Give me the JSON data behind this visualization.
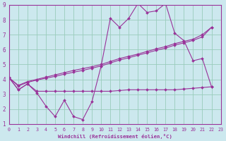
{
  "bg_color": "#cce8ee",
  "grid_color": "#99ccbb",
  "line_color": "#993399",
  "xlabel": "Windchill (Refroidissement éolien,°C)",
  "xlim": [
    0,
    23
  ],
  "ylim": [
    1,
    9
  ],
  "xticks": [
    0,
    1,
    2,
    3,
    4,
    5,
    6,
    7,
    8,
    9,
    10,
    11,
    12,
    13,
    14,
    15,
    16,
    17,
    18,
    19,
    20,
    21,
    22,
    23
  ],
  "yticks": [
    1,
    2,
    3,
    4,
    5,
    6,
    7,
    8,
    9
  ],
  "series1_x": [
    0,
    1,
    2,
    3,
    4,
    5,
    6,
    7,
    8,
    9,
    10,
    11,
    12,
    13,
    14,
    15,
    16,
    17,
    18,
    19,
    20,
    21,
    22
  ],
  "series1_y": [
    4.1,
    3.3,
    3.7,
    3.1,
    2.2,
    1.5,
    2.6,
    1.5,
    1.3,
    2.5,
    4.9,
    8.1,
    7.5,
    8.1,
    9.1,
    8.5,
    8.6,
    9.1,
    7.1,
    6.6,
    5.25,
    5.4,
    3.5
  ],
  "series2_x": [
    0,
    1,
    2,
    3,
    4,
    5,
    6,
    7,
    8,
    9,
    10,
    11,
    12,
    13,
    14,
    15,
    16,
    17,
    18,
    19,
    20,
    21,
    22
  ],
  "series2_y": [
    4.1,
    3.3,
    3.7,
    3.2,
    3.2,
    3.2,
    3.2,
    3.2,
    3.2,
    3.2,
    3.2,
    3.2,
    3.25,
    3.3,
    3.3,
    3.3,
    3.3,
    3.3,
    3.3,
    3.35,
    3.4,
    3.45,
    3.5
  ],
  "series3_x": [
    0,
    1,
    2,
    3,
    4,
    5,
    6,
    7,
    8,
    9,
    10,
    11,
    12,
    13,
    14,
    15,
    16,
    17,
    18,
    19,
    20,
    21,
    22
  ],
  "series3_y": [
    4.1,
    3.6,
    3.85,
    4.0,
    4.15,
    4.3,
    4.45,
    4.6,
    4.72,
    4.85,
    5.0,
    5.2,
    5.4,
    5.55,
    5.7,
    5.88,
    6.05,
    6.2,
    6.4,
    6.55,
    6.7,
    7.0,
    7.5
  ],
  "series4_x": [
    0,
    1,
    2,
    3,
    4,
    5,
    6,
    7,
    8,
    9,
    10,
    11,
    12,
    13,
    14,
    15,
    16,
    17,
    18,
    19,
    20,
    21,
    22
  ],
  "series4_y": [
    4.1,
    3.55,
    3.8,
    3.95,
    4.08,
    4.2,
    4.35,
    4.48,
    4.6,
    4.75,
    4.9,
    5.1,
    5.3,
    5.45,
    5.62,
    5.78,
    5.95,
    6.1,
    6.3,
    6.45,
    6.62,
    6.85,
    7.5
  ]
}
